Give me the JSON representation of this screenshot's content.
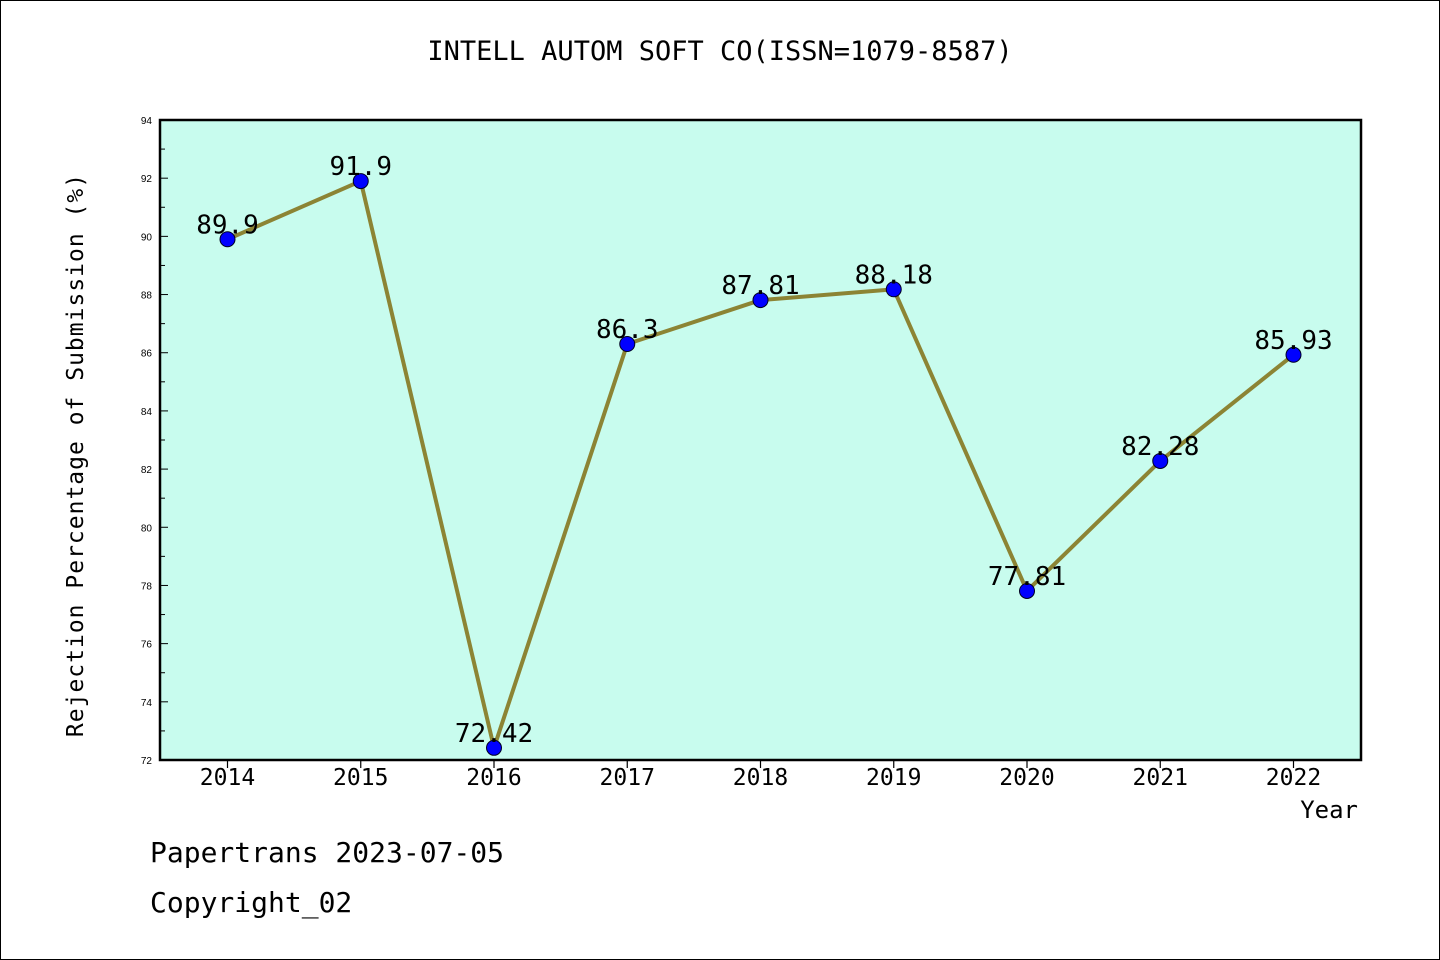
{
  "title": "INTELL AUTOM SOFT CO(ISSN=1079-8587)",
  "footer": {
    "line1": "Papertrans 2023-07-05",
    "line2": "Copyright_02"
  },
  "colors": {
    "plot_background": "#c8fcee",
    "line": "#8c8434",
    "marker": "#0000ff"
  },
  "chart_data": {
    "type": "line",
    "title": "INTELL AUTOM SOFT CO(ISSN=1079-8587)",
    "xlabel": "Year",
    "ylabel": "Rejection Percentage of Submission (%)",
    "categories": [
      "2014",
      "2015",
      "2016",
      "2017",
      "2018",
      "2019",
      "2020",
      "2021",
      "2022"
    ],
    "values": [
      89.9,
      91.9,
      72.42,
      86.3,
      87.81,
      88.18,
      77.81,
      82.28,
      85.93
    ],
    "data_labels": [
      "89.9",
      "91.9",
      "72.42",
      "86.3",
      "87.81",
      "88.18",
      "77.81",
      "82.28",
      "85.93"
    ],
    "ylim": [
      72,
      94
    ],
    "yticks": [
      72,
      74,
      76,
      78,
      80,
      82,
      84,
      86,
      88,
      90,
      92,
      94
    ],
    "ytick_labels": [
      "72",
      "74",
      "76",
      "78",
      "80",
      "82",
      "84",
      "86",
      "88",
      "90",
      "92",
      "94"
    ],
    "grid": false,
    "legend": "none",
    "marker": "circle"
  }
}
